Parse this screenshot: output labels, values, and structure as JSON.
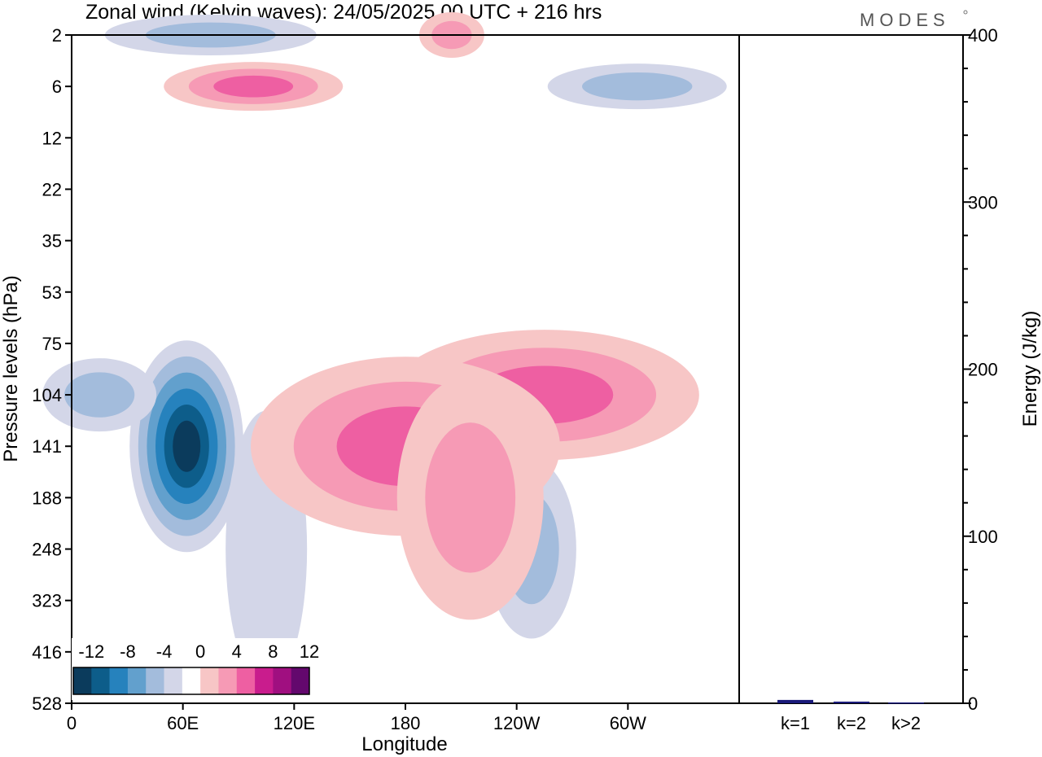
{
  "brand": "MODES",
  "colors": {
    "neg": [
      "#0b3b5c",
      "#0d5d8a",
      "#2682bd",
      "#62a0cd",
      "#a3bcdc",
      "#d3d6e8"
    ],
    "pos": [
      "#f7c6c6",
      "#f69ab5",
      "#ee5fa2",
      "#c91c8d",
      "#a00f80",
      "#63086d"
    ],
    "bars": "#1a1a7a"
  },
  "chart_data": [
    {
      "type": "heatmap",
      "title": "Zonal wind (Kelvin waves):  24/05/2025  00 UTC  + 216 hrs",
      "xlabel": "Longitude",
      "ylabel": "Pressure levels (hPa)",
      "x_ticks": [
        "0",
        "60E",
        "120E",
        "180",
        "120W",
        "60W"
      ],
      "y_ticks": [
        "2",
        "6",
        "12",
        "22",
        "35",
        "53",
        "75",
        "104",
        "141",
        "188",
        "248",
        "323",
        "416",
        "528"
      ],
      "colorbar": {
        "labels": [
          "-12",
          "-8",
          "-4",
          "0",
          "4",
          "8",
          "12"
        ],
        "levels": [
          -14,
          -12,
          -10,
          -8,
          -6,
          -4,
          -2,
          2,
          4,
          6,
          8,
          10,
          12,
          14
        ]
      },
      "features": [
        {
          "sign": "neg",
          "lon": 62,
          "level": "141",
          "peak": -14
        },
        {
          "sign": "neg",
          "lon": 15,
          "level": "104",
          "peak": -6
        },
        {
          "sign": "neg",
          "lon": 105,
          "level": "248",
          "peak": -4
        },
        {
          "sign": "neg",
          "lon": 248,
          "level": "248",
          "peak": -6
        },
        {
          "sign": "pos",
          "lon": 255,
          "level": "104",
          "peak": 8
        },
        {
          "sign": "pos",
          "lon": 180,
          "level": "141",
          "peak": 8
        },
        {
          "sign": "pos",
          "lon": 215,
          "level": "188",
          "peak": 6
        },
        {
          "sign": "pos",
          "lon": 98,
          "level": "6",
          "peak": 8
        },
        {
          "sign": "neg",
          "lon": 75,
          "level": "2",
          "peak": -6
        },
        {
          "sign": "neg",
          "lon": 305,
          "level": "6",
          "peak": -6
        },
        {
          "sign": "pos",
          "lon": 205,
          "level": "2",
          "peak": 6
        }
      ]
    },
    {
      "type": "bar",
      "ylabel": "Energy (J/kg)",
      "ylim": [
        0,
        400
      ],
      "y_ticks": [
        "0",
        "100",
        "200",
        "300",
        "400"
      ],
      "categories": [
        "k=1",
        "k=2",
        "k>2"
      ],
      "values": [
        2,
        1,
        0.5
      ]
    }
  ]
}
